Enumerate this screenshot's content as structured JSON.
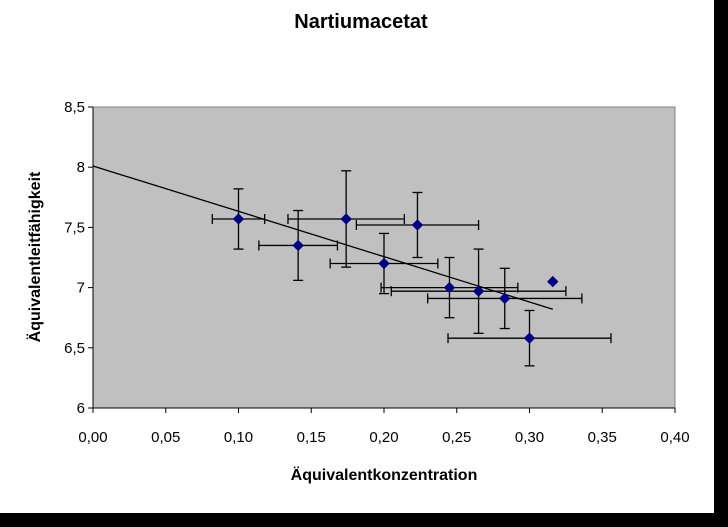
{
  "chart_data": {
    "type": "scatter",
    "title": "Nartiumacetat",
    "xlabel": "Äquivalentkonzentration",
    "ylabel": "Äquivalentleitfähigkeit",
    "xlim": [
      0.0,
      0.4
    ],
    "ylim": [
      6.0,
      8.5
    ],
    "x_ticks": [
      "0,00",
      "0,05",
      "0,10",
      "0,15",
      "0,20",
      "0,25",
      "0,30",
      "0,35",
      "0,40"
    ],
    "y_ticks": [
      "6",
      "6,5",
      "7",
      "7,5",
      "8",
      "8,5"
    ],
    "grid": false,
    "plot_background": "#c0c0c0",
    "marker_color": "#000080",
    "points": [
      {
        "x": 0.1,
        "y": 7.57,
        "xerr": 0.018,
        "yerr": 0.25
      },
      {
        "x": 0.141,
        "y": 7.35,
        "xerr": 0.027,
        "yerr": 0.29
      },
      {
        "x": 0.174,
        "y": 7.57,
        "xerr": 0.04,
        "yerr": 0.4
      },
      {
        "x": 0.2,
        "y": 7.2,
        "xerr": 0.037,
        "yerr": 0.25
      },
      {
        "x": 0.223,
        "y": 7.52,
        "xerr": 0.042,
        "yerr": 0.27
      },
      {
        "x": 0.245,
        "y": 7.0,
        "xerr": 0.047,
        "yerr": 0.25
      },
      {
        "x": 0.265,
        "y": 6.97,
        "xerr": 0.06,
        "yerr": 0.35
      },
      {
        "x": 0.283,
        "y": 6.91,
        "xerr": 0.053,
        "yerr": 0.25
      },
      {
        "x": 0.3,
        "y": 6.58,
        "xerr": 0.056,
        "yerr": 0.23
      },
      {
        "x": 0.316,
        "y": 7.05,
        "xerr": 0,
        "yerr": 0
      }
    ],
    "trendline": {
      "x": [
        0.0,
        0.316
      ],
      "y": [
        8.01,
        6.82
      ]
    }
  }
}
